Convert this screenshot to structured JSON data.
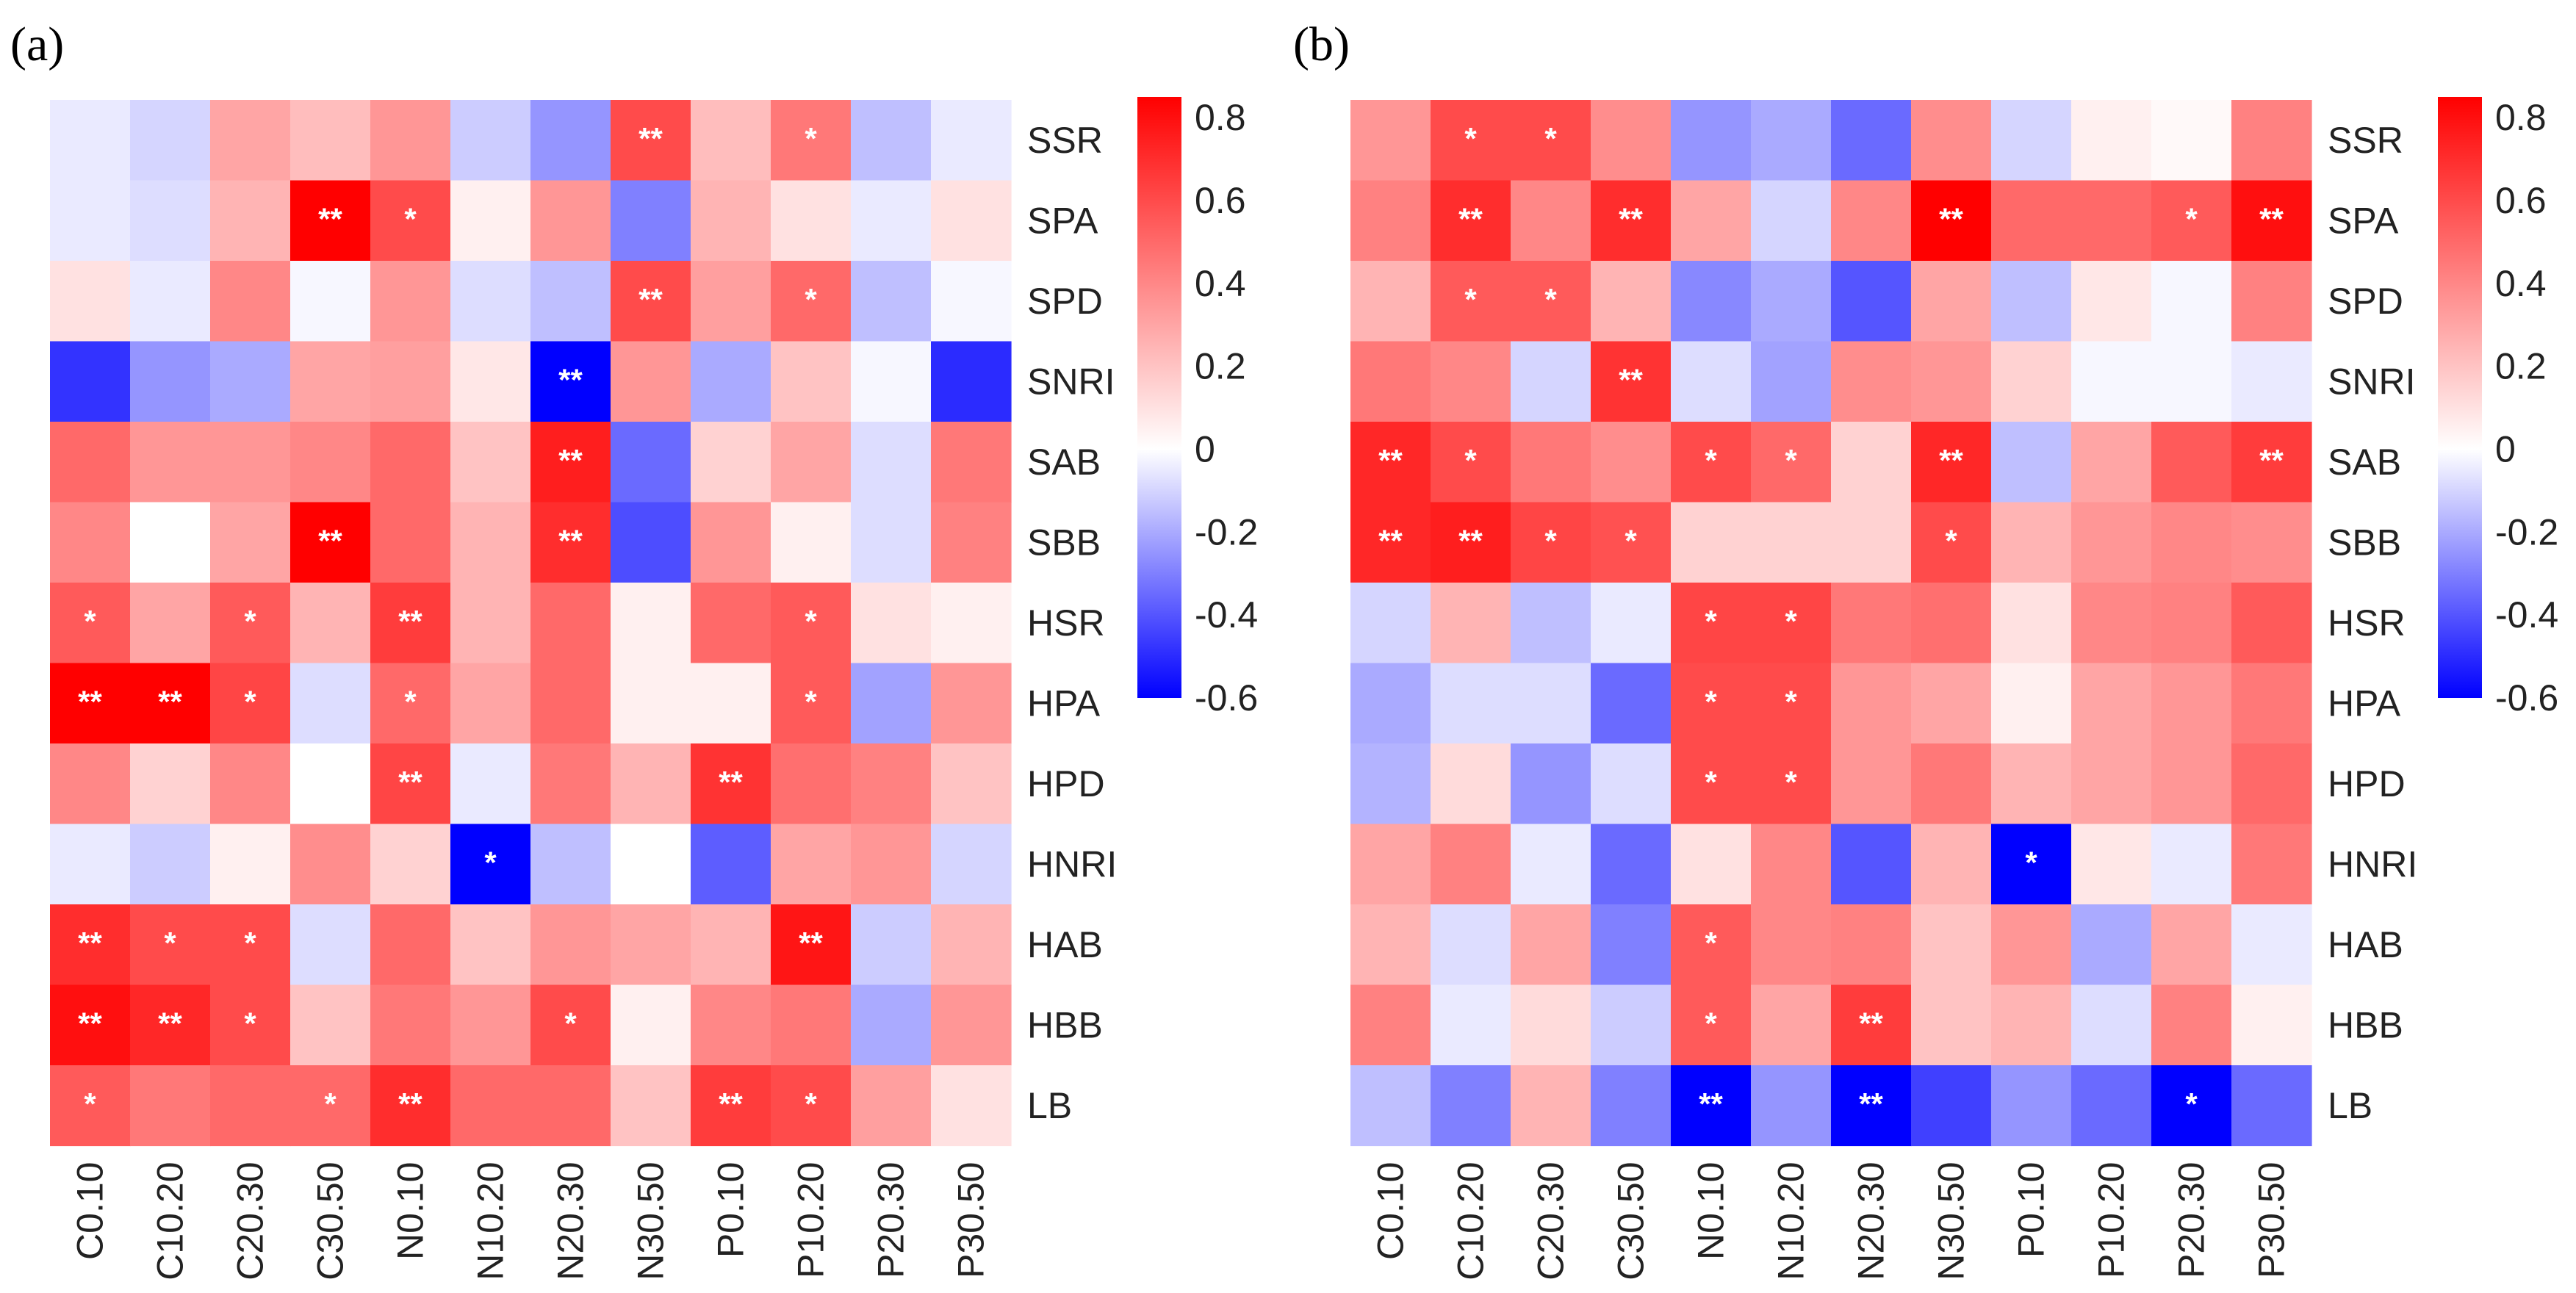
{
  "chart_data": [
    {
      "type": "heatmap",
      "panel_label": "(a)",
      "rows": [
        "SSR",
        "SPA",
        "SPD",
        "SNRI",
        "SAB",
        "SBB",
        "HSR",
        "HPA",
        "HPD",
        "HNRI",
        "HAB",
        "HBB",
        "LB"
      ],
      "columns": [
        "C0.10",
        "C10.20",
        "C20.30",
        "C30.50",
        "N0.10",
        "N10.20",
        "N20.30",
        "N30.50",
        "P0.10",
        "P10.20",
        "P20.30",
        "P30.50"
      ],
      "values": [
        [
          -0.05,
          -0.1,
          0.3,
          0.22,
          0.35,
          -0.12,
          -0.25,
          0.6,
          0.22,
          0.45,
          -0.15,
          -0.05
        ],
        [
          -0.05,
          -0.08,
          0.25,
          0.85,
          0.6,
          0.05,
          0.35,
          -0.3,
          0.25,
          0.1,
          -0.05,
          0.1
        ],
        [
          0.1,
          -0.05,
          0.4,
          -0.02,
          0.35,
          -0.08,
          -0.15,
          0.6,
          0.32,
          0.5,
          -0.15,
          -0.02
        ],
        [
          -0.48,
          -0.25,
          -0.2,
          0.3,
          0.32,
          0.08,
          -0.62,
          0.35,
          -0.2,
          0.2,
          -0.02,
          -0.5
        ],
        [
          0.5,
          0.35,
          0.35,
          0.4,
          0.5,
          0.2,
          0.75,
          -0.35,
          0.15,
          0.3,
          -0.08,
          0.45
        ],
        [
          0.4,
          0.0,
          0.3,
          0.85,
          0.5,
          0.25,
          0.7,
          -0.42,
          0.35,
          0.05,
          -0.08,
          0.42
        ],
        [
          0.55,
          0.3,
          0.55,
          0.25,
          0.65,
          0.25,
          0.5,
          0.05,
          0.5,
          0.55,
          0.1,
          0.05
        ],
        [
          0.85,
          0.85,
          0.62,
          -0.08,
          0.5,
          0.3,
          0.5,
          0.05,
          0.05,
          0.55,
          -0.22,
          0.35
        ],
        [
          0.4,
          0.15,
          0.4,
          0.0,
          0.62,
          -0.05,
          0.45,
          0.25,
          0.68,
          0.48,
          0.42,
          0.2
        ],
        [
          -0.05,
          -0.12,
          0.05,
          0.38,
          0.15,
          -0.65,
          -0.15,
          0.0,
          -0.38,
          0.3,
          0.35,
          -0.1
        ],
        [
          0.7,
          0.6,
          0.6,
          -0.08,
          0.5,
          0.2,
          0.35,
          0.3,
          0.25,
          0.78,
          -0.12,
          0.25
        ],
        [
          0.8,
          0.72,
          0.6,
          0.2,
          0.45,
          0.35,
          0.6,
          0.05,
          0.4,
          0.45,
          -0.2,
          0.35
        ],
        [
          0.55,
          0.45,
          0.5,
          0.5,
          0.7,
          0.5,
          0.5,
          0.2,
          0.65,
          0.6,
          0.32,
          0.1
        ]
      ],
      "significance": [
        [
          "",
          "",
          "",
          "",
          "",
          "",
          "",
          "**",
          "",
          "*",
          "",
          ""
        ],
        [
          "",
          "",
          "",
          "**",
          "*",
          "",
          "",
          "",
          "",
          "",
          "",
          ""
        ],
        [
          "",
          "",
          "",
          "",
          "",
          "",
          "",
          "**",
          "",
          "*",
          "",
          ""
        ],
        [
          "",
          "",
          "",
          "",
          "",
          "",
          "**",
          "",
          "",
          "",
          "",
          ""
        ],
        [
          "",
          "",
          "",
          "",
          "",
          "",
          "**",
          "",
          "",
          "",
          "",
          ""
        ],
        [
          "",
          "",
          "",
          "**",
          "",
          "",
          "**",
          "",
          "",
          "",
          "",
          ""
        ],
        [
          "*",
          "",
          "*",
          "",
          "**",
          "",
          "",
          "",
          "",
          "*",
          "",
          ""
        ],
        [
          "**",
          "**",
          "*",
          "",
          "*",
          "",
          "",
          "",
          "",
          "*",
          "",
          ""
        ],
        [
          "",
          "",
          "",
          "",
          "**",
          "",
          "",
          "",
          "**",
          "",
          "",
          ""
        ],
        [
          "",
          "",
          "",
          "",
          "",
          "*",
          "",
          "",
          "",
          "",
          "",
          ""
        ],
        [
          "**",
          "*",
          "*",
          "",
          "",
          "",
          "",
          "",
          "",
          "**",
          "",
          ""
        ],
        [
          "**",
          "**",
          "*",
          "",
          "",
          "",
          "*",
          "",
          "",
          "",
          "",
          ""
        ],
        [
          "*",
          "",
          "",
          "*",
          "**",
          "",
          "",
          "",
          "**",
          "*",
          "",
          ""
        ]
      ],
      "colorbar": {
        "ticks": [
          "0.8",
          "0.6",
          "0.4",
          "0.2",
          "0",
          "-0.2",
          "-0.4",
          "-0.6"
        ],
        "min": -0.6,
        "max": 0.85,
        "colors": {
          "neg": "#0000ff",
          "mid": "#ffffff",
          "pos": "#ff0000"
        }
      }
    },
    {
      "type": "heatmap",
      "panel_label": "(b)",
      "rows": [
        "SSR",
        "SPA",
        "SPD",
        "SNRI",
        "SAB",
        "SBB",
        "HSR",
        "HPA",
        "HPD",
        "HNRI",
        "HAB",
        "HBB",
        "LB"
      ],
      "columns": [
        "C0.10",
        "C10.20",
        "C20.30",
        "C30.50",
        "N0.10",
        "N10.20",
        "N20.30",
        "N30.50",
        "P0.10",
        "P10.20",
        "P20.30",
        "P30.50"
      ],
      "values": [
        [
          0.35,
          0.6,
          0.6,
          0.38,
          -0.25,
          -0.2,
          -0.35,
          0.38,
          -0.1,
          0.05,
          0.02,
          0.42
        ],
        [
          0.42,
          0.7,
          0.4,
          0.7,
          0.3,
          -0.1,
          0.4,
          0.85,
          0.5,
          0.5,
          0.55,
          0.8
        ],
        [
          0.25,
          0.55,
          0.55,
          0.25,
          -0.28,
          -0.2,
          -0.4,
          0.3,
          -0.15,
          0.08,
          -0.02,
          0.42
        ],
        [
          0.45,
          0.4,
          -0.1,
          0.68,
          -0.08,
          -0.22,
          0.38,
          0.35,
          0.15,
          -0.02,
          -0.02,
          -0.05
        ],
        [
          0.72,
          0.6,
          0.45,
          0.38,
          0.6,
          0.5,
          0.15,
          0.72,
          -0.15,
          0.3,
          0.55,
          0.65
        ],
        [
          0.72,
          0.75,
          0.62,
          0.58,
          0.15,
          0.15,
          0.15,
          0.6,
          0.25,
          0.35,
          0.4,
          0.38
        ],
        [
          -0.1,
          0.25,
          -0.15,
          -0.05,
          0.62,
          0.62,
          0.45,
          0.48,
          0.1,
          0.4,
          0.42,
          0.55
        ],
        [
          -0.2,
          -0.08,
          -0.08,
          -0.35,
          0.6,
          0.6,
          0.35,
          0.3,
          0.05,
          0.3,
          0.35,
          0.45
        ],
        [
          -0.18,
          0.12,
          -0.25,
          -0.08,
          0.6,
          0.6,
          0.35,
          0.45,
          0.25,
          0.3,
          0.35,
          0.5
        ],
        [
          0.3,
          0.42,
          -0.05,
          -0.35,
          0.1,
          0.4,
          -0.4,
          0.25,
          -0.6,
          0.08,
          -0.05,
          0.45
        ],
        [
          0.25,
          -0.08,
          0.3,
          -0.3,
          0.55,
          0.4,
          0.42,
          0.2,
          0.35,
          -0.2,
          0.3,
          -0.05
        ],
        [
          0.42,
          -0.05,
          0.12,
          -0.12,
          0.55,
          0.3,
          0.65,
          0.2,
          0.25,
          -0.08,
          0.42,
          0.05
        ],
        [
          -0.15,
          -0.3,
          0.25,
          -0.3,
          -0.62,
          -0.25,
          -0.62,
          -0.45,
          -0.25,
          -0.35,
          -0.6,
          -0.35
        ]
      ],
      "significance": [
        [
          "",
          "*",
          "*",
          "",
          "",
          "",
          "",
          "",
          "",
          "",
          "",
          ""
        ],
        [
          "",
          "**",
          "",
          "**",
          "",
          "",
          "",
          "**",
          "",
          "",
          "*",
          "**"
        ],
        [
          "",
          "*",
          "*",
          "",
          "",
          "",
          "",
          "",
          "",
          "",
          "",
          ""
        ],
        [
          "",
          "",
          "",
          "**",
          "",
          "",
          "",
          "",
          "",
          "",
          "",
          ""
        ],
        [
          "**",
          "*",
          "",
          "",
          "*",
          "*",
          "",
          "**",
          "",
          "",
          "",
          "**"
        ],
        [
          "**",
          "**",
          "*",
          "*",
          "",
          "",
          "",
          "*",
          "",
          "",
          "",
          ""
        ],
        [
          "",
          "",
          "",
          "",
          "*",
          "*",
          "",
          "",
          "",
          "",
          "",
          ""
        ],
        [
          "",
          "",
          "",
          "",
          "*",
          "*",
          "",
          "",
          "",
          "",
          "",
          ""
        ],
        [
          "",
          "",
          "",
          "",
          "*",
          "*",
          "",
          "",
          "",
          "",
          "",
          ""
        ],
        [
          "",
          "",
          "",
          "",
          "",
          "",
          "",
          "",
          "*",
          "",
          "",
          ""
        ],
        [
          "",
          "",
          "",
          "",
          "*",
          "",
          "",
          "",
          "",
          "",
          "",
          ""
        ],
        [
          "",
          "",
          "",
          "",
          "*",
          "",
          "**",
          "",
          "",
          "",
          "",
          ""
        ],
        [
          "",
          "",
          "",
          "",
          "**",
          "",
          "**",
          "",
          "",
          "",
          "*",
          ""
        ]
      ],
      "colorbar": {
        "ticks": [
          "0.8",
          "0.6",
          "0.4",
          "0.2",
          "0",
          "-0.2",
          "-0.4",
          "-0.6"
        ],
        "min": -0.6,
        "max": 0.85,
        "colors": {
          "neg": "#0000ff",
          "mid": "#ffffff",
          "pos": "#ff0000"
        }
      }
    }
  ]
}
